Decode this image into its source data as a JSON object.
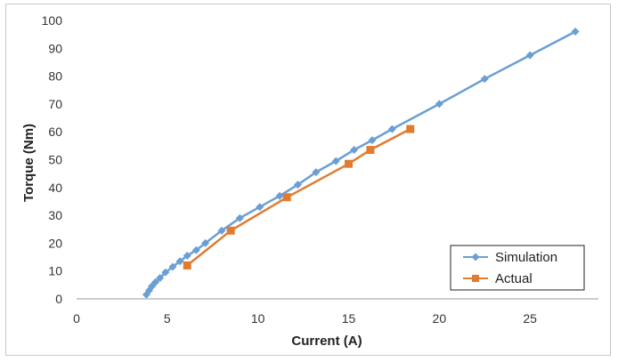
{
  "chart_data": {
    "type": "line",
    "xlabel": "Current (A)",
    "ylabel": "Torque (Nm)",
    "xlim": [
      0,
      30
    ],
    "ylim": [
      0,
      100
    ],
    "xticks": [
      0,
      5,
      10,
      15,
      20,
      25
    ],
    "yticks": [
      0,
      10,
      20,
      30,
      40,
      50,
      60,
      70,
      80,
      90,
      100
    ],
    "grid": false,
    "legend_position": "bottom-right",
    "series": [
      {
        "name": "Simulation",
        "color": "#6a9fd4",
        "marker": "diamond",
        "x": [
          3.85,
          4.0,
          4.15,
          4.35,
          4.6,
          4.9,
          5.3,
          5.7,
          6.1,
          6.6,
          7.1,
          8.0,
          9.0,
          10.1,
          11.2,
          12.2,
          13.2,
          14.3,
          15.3,
          16.3,
          17.4,
          20.0,
          22.5,
          25.0,
          27.5
        ],
        "y": [
          1.5,
          3.0,
          4.5,
          6.0,
          7.5,
          9.5,
          11.5,
          13.5,
          15.5,
          17.5,
          20.0,
          24.5,
          29.0,
          33.0,
          37.0,
          41.0,
          45.5,
          49.5,
          53.5,
          57.0,
          61.0,
          70.0,
          79.0,
          87.5,
          96.0
        ]
      },
      {
        "name": "Actual",
        "color": "#e07c30",
        "marker": "square",
        "x": [
          6.1,
          8.5,
          11.6,
          15.0,
          16.2,
          18.4
        ],
        "y": [
          12.0,
          24.5,
          36.5,
          48.5,
          53.5,
          61.0
        ]
      }
    ]
  }
}
